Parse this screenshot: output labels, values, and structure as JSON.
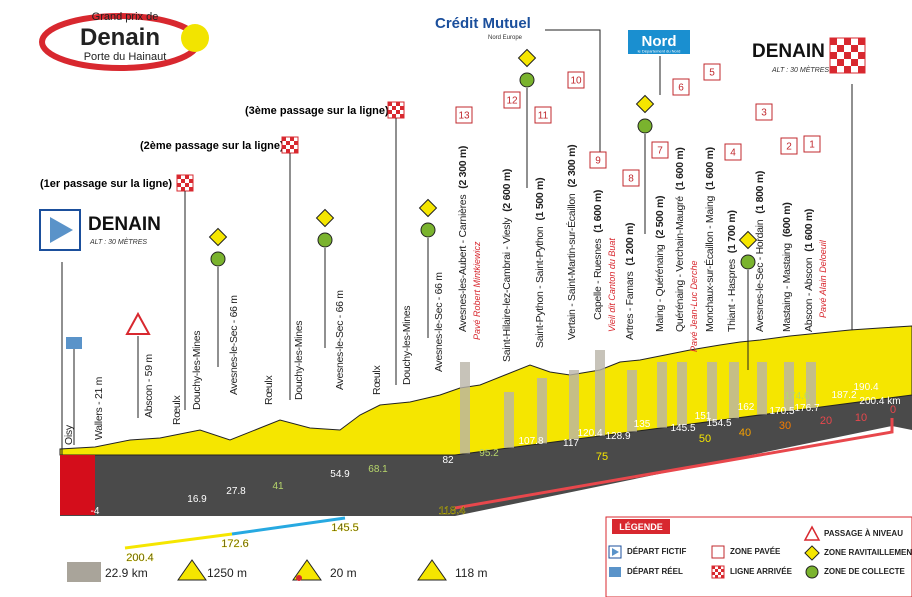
{
  "logo": {
    "line1": "Grand prix de",
    "name": "Denain",
    "line2": "Porte du Hainaut"
  },
  "sponsors": {
    "bank": "Crédit Mutuel",
    "bank_sub": "Nord Europe",
    "dept": "Nord",
    "dept_sub": "le Département du Nord"
  },
  "start": {
    "town": "DENAIN",
    "alt": "ALT : 30 MÈTRES"
  },
  "finish": {
    "town": "DENAIN",
    "alt": "ALT : 30 MÈTRES"
  },
  "passages": [
    "(1er passage sur la ligne)",
    "(2ème passage sur la ligne)",
    "(3ème passage sur la ligne)"
  ],
  "towns": [
    "Oisy",
    "Wallers - 21 m",
    "Abscon - 59 m",
    "Rœulx",
    "Douchy-les-Mines",
    "Avesnes-le-Sec - 66 m",
    "Rœulx",
    "Douchy-les-Mines",
    "Avesnes-le-Sec - 66 m",
    "Rœulx",
    "Douchy-les-Mines",
    "Avesnes-le-Sec - 66 m"
  ],
  "sectors": [
    {
      "number": 13,
      "name": "Avesnes-les-Aubert - Carnières",
      "length": "(2 300 m)",
      "dedication": "Pavé Robert Mintkiewicz"
    },
    {
      "number": 12,
      "name": "Saint-Hilaire-lez-Cambrai - Viesly",
      "length": "(2 600 m)"
    },
    {
      "number": 11,
      "name": "Saint-Python - Saint-Python",
      "length": "(1 500 m)"
    },
    {
      "number": 10,
      "name": "Vertain - Saint-Martin-sur-Écaillon",
      "length": "(2 300 m)"
    },
    {
      "number": 9,
      "name": "Capelle - Ruesnes",
      "length": "(1 600 m)",
      "dedication": "Vieil dit Canton du Buat"
    },
    {
      "number": 8,
      "name": "Artres - Famars",
      "length": "(1 200 m)"
    },
    {
      "number": 7,
      "name": "Maing - Quérénaing",
      "length": "(2 500 m)"
    },
    {
      "number": 6,
      "name": "Quérénaing - Verchain-Maugré",
      "length": "(1 600 m)",
      "dedication": "Pavé Jean-Luc Derche"
    },
    {
      "number": 5,
      "name": "Monchaux-sur-Écaillon - Maing",
      "length": "(1 600 m)"
    },
    {
      "number": 4,
      "name": "Thiant - Haspres",
      "length": "(1 700 m)"
    },
    {
      "number": 3,
      "name": "Avesnes-le-Sec - Hordain",
      "length": "(1 800 m)"
    },
    {
      "number": 2,
      "name": "Mastaing - Mastaing",
      "length": "(600 m)"
    },
    {
      "number": 1,
      "name": "Abscon - Abscon",
      "length": "(1 600 m)",
      "dedication": "Pavé Alain Deloeuil"
    }
  ],
  "km_marks": [
    -4,
    16.9,
    27.8,
    41,
    54.9,
    68.1,
    82,
    95.2,
    107.8,
    117,
    120.4,
    128.9,
    135,
    145.5,
    151,
    154.5,
    162,
    170.5,
    174.6,
    176.7,
    187.2,
    190.4,
    "200.4 km"
  ],
  "km_to_go": [
    75,
    50,
    40,
    30,
    20,
    10,
    0
  ],
  "km_bar": [
    200.4,
    172.6,
    145.5,
    118.4
  ],
  "stats": [
    "22.9 km",
    "1250 m",
    "20 m",
    "118 m"
  ],
  "legend": {
    "title": "LÉGENDE",
    "items": [
      "DÉPART FICTIF",
      "DÉPART RÉEL",
      "ZONE PAVÉE",
      "LIGNE ARRIVÉE",
      "PASSAGE À NIVEAU",
      "ZONE RAVITAILLEMENT",
      "ZONE DE COLLECTE"
    ]
  }
}
